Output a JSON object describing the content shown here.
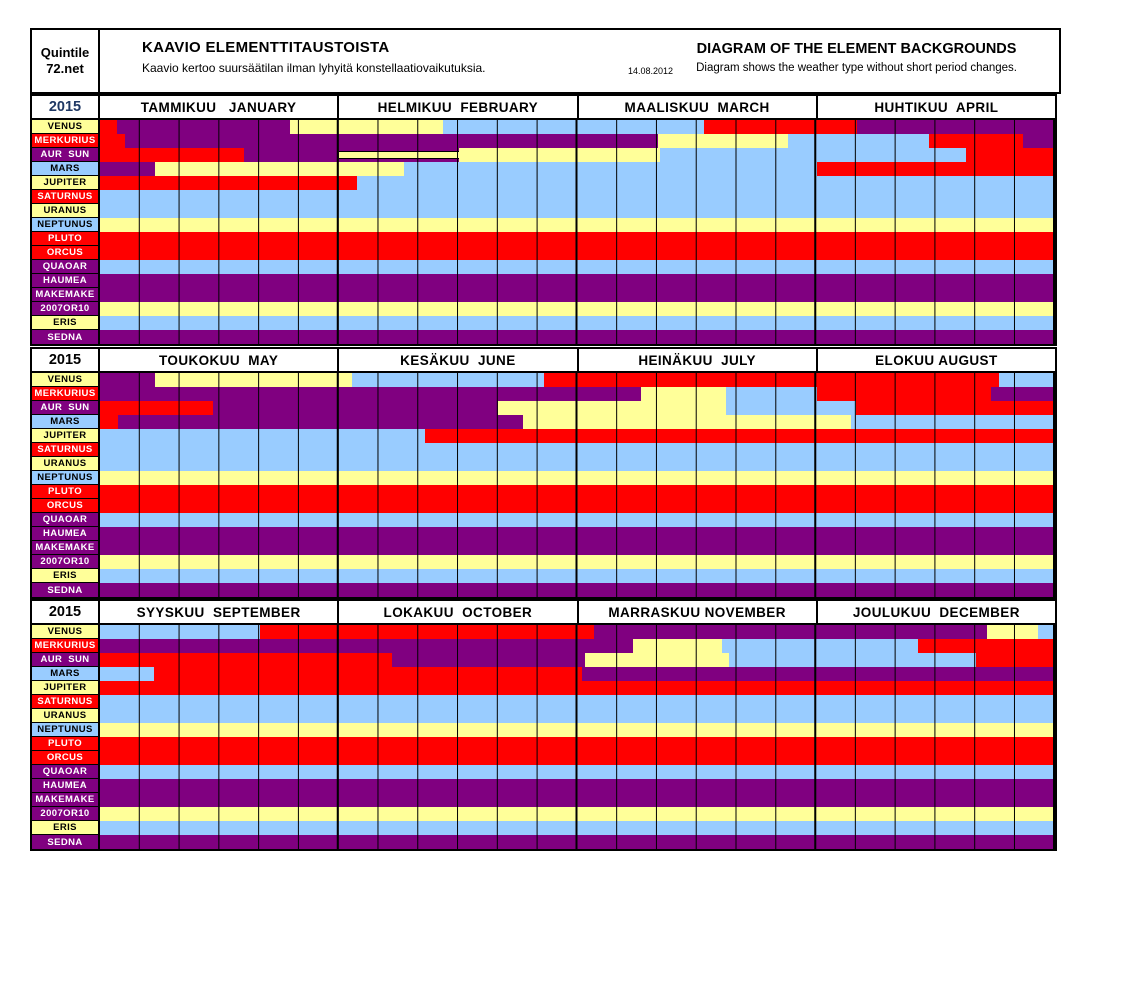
{
  "header": {
    "logo_line1": "Quintile",
    "logo_line2": "72.net",
    "title_fi": "KAAVIO ELEMENTTITAUSTOISTA",
    "subtitle_fi": "Kaavio kertoo suursäätilan ilman lyhyitä konstellaatiovaikutuksia.",
    "date": "14.08.2012",
    "title_en": "DIAGRAM OF THE ELEMENT BACKGROUNDS",
    "subtitle_en": "Diagram shows the weather type without short period changes."
  },
  "chart_data": {
    "type": "heatmap",
    "title": "KAAVIO ELEMENTTITAUSTOISTA / DIAGRAM OF THE ELEMENT BACKGROUNDS",
    "note": "Each block spans 4 months; segment widths are percent of the 4-month axis; grid has 6 sub-columns per month",
    "colors": {
      "R": "#FF0000",
      "P": "#800080",
      "Y": "#FFFF99",
      "B": "#99CCFF"
    },
    "stripe_segment": "S = purple band with black-bordered yellow stripe",
    "planets": [
      {
        "label": "VENUS",
        "bg": "Y",
        "fg": "#000000"
      },
      {
        "label": "MERKURIUS",
        "bg": "R",
        "fg": "#FFFFFF"
      },
      {
        "label": "AUR  SUN",
        "bg": "P",
        "fg": "#FFFFFF"
      },
      {
        "label": "MARS",
        "bg": "B",
        "fg": "#000000"
      },
      {
        "label": "JUPITER",
        "bg": "Y",
        "fg": "#000000"
      },
      {
        "label": "SATURNUS",
        "bg": "R",
        "fg": "#FFFFFF"
      },
      {
        "label": "URANUS",
        "bg": "Y",
        "fg": "#000000"
      },
      {
        "label": "NEPTUNUS",
        "bg": "B",
        "fg": "#000000"
      },
      {
        "label": "PLUTO",
        "bg": "R",
        "fg": "#FFFFFF"
      },
      {
        "label": "ORCUS",
        "bg": "R",
        "fg": "#FFFFFF"
      },
      {
        "label": "QUAOAR",
        "bg": "P",
        "fg": "#FFFFFF"
      },
      {
        "label": "HAUMEA",
        "bg": "P",
        "fg": "#FFFFFF"
      },
      {
        "label": "MAKEMAKE",
        "bg": "P",
        "fg": "#FFFFFF"
      },
      {
        "label": "2007OR10",
        "bg": "P",
        "fg": "#FFFFFF"
      },
      {
        "label": "ERIS",
        "bg": "Y",
        "fg": "#000000"
      },
      {
        "label": "SEDNA",
        "bg": "P",
        "fg": "#FFFFFF"
      }
    ],
    "blocks": [
      {
        "year": "2015",
        "year_color": "#1F3864",
        "months": [
          "TAMMIKUU   JANUARY",
          "HELMIKUU  FEBRUARY",
          "MAALISKUU  MARCH",
          "HUHTIKUU  APRIL"
        ],
        "rows": [
          [
            [
              "R",
              1.8
            ],
            [
              "P",
              18.1
            ],
            [
              "Y",
              16.0
            ],
            [
              "B",
              27.4
            ],
            [
              "R",
              16.0
            ],
            [
              "P",
              20.7
            ]
          ],
          [
            [
              "R",
              2.6
            ],
            [
              "P",
              55.8
            ],
            [
              "Y",
              13.6
            ],
            [
              "B",
              14.8
            ],
            [
              "R",
              9.9
            ],
            [
              "P",
              3.3
            ]
          ],
          [
            [
              "R",
              15.1
            ],
            [
              "P",
              9.9
            ],
            [
              "S",
              12.6
            ],
            [
              "Y",
              21.0
            ],
            [
              "B",
              32.1
            ],
            [
              "R",
              9.3
            ]
          ],
          [
            [
              "P",
              5.8
            ],
            [
              "Y",
              26.0
            ],
            [
              "B",
              43.3
            ],
            [
              "R",
              24.9
            ]
          ],
          [
            [
              "R",
              26.9
            ],
            [
              "B",
              73.1
            ]
          ],
          [
            [
              "B",
              100
            ]
          ],
          [
            [
              "B",
              100
            ]
          ],
          [
            [
              "Y",
              100
            ]
          ],
          [
            [
              "R",
              100
            ]
          ],
          [
            [
              "R",
              100
            ]
          ],
          [
            [
              "B",
              100
            ]
          ],
          [
            [
              "P",
              100
            ]
          ],
          [
            [
              "P",
              100
            ]
          ],
          [
            [
              "Y",
              100
            ]
          ],
          [
            [
              "B",
              100
            ]
          ],
          [
            [
              "P",
              100
            ]
          ]
        ]
      },
      {
        "year": "2015",
        "year_color": "#000000",
        "months": [
          "TOUKOKUU  MAY",
          "KESÄKUU  JUNE",
          "HEINÄKUU  JULY",
          "ELOKUU AUGUST"
        ],
        "rows": [
          [
            [
              "P",
              5.8
            ],
            [
              "Y",
              20.6
            ],
            [
              "B",
              20.1
            ],
            [
              "R",
              47.6
            ],
            [
              "B",
              5.9
            ]
          ],
          [
            [
              "P",
              56.7
            ],
            [
              "Y",
              8.8
            ],
            [
              "B",
              9.6
            ],
            [
              "R",
              18.2
            ],
            [
              "P",
              6.7
            ]
          ],
          [
            [
              "R",
              11.8
            ],
            [
              "P",
              29.9
            ],
            [
              "Y",
              23.9
            ],
            [
              "B",
              13.6
            ],
            [
              "R",
              20.8
            ]
          ],
          [
            [
              "R",
              1.9
            ],
            [
              "P",
              42.4
            ],
            [
              "Y",
              34.3
            ],
            [
              "B",
              21.4
            ]
          ],
          [
            [
              "B",
              34.0
            ],
            [
              "R",
              66.0
            ]
          ],
          [
            [
              "B",
              100
            ]
          ],
          [
            [
              "B",
              100
            ]
          ],
          [
            [
              "Y",
              100
            ]
          ],
          [
            [
              "R",
              100
            ]
          ],
          [
            [
              "R",
              100
            ]
          ],
          [
            [
              "B",
              100
            ]
          ],
          [
            [
              "P",
              100
            ]
          ],
          [
            [
              "P",
              100
            ]
          ],
          [
            [
              "Y",
              100
            ]
          ],
          [
            [
              "B",
              100
            ]
          ],
          [
            [
              "P",
              100
            ]
          ]
        ]
      },
      {
        "year": "2015",
        "year_color": "#000000",
        "months": [
          "SYYSKUU  SEPTEMBER",
          "LOKAKUU  OCTOBER",
          "MARRASKUU NOVEMBER",
          "JOULUKUU  DECEMBER"
        ],
        "rows": [
          [
            [
              "B",
              16.8
            ],
            [
              "R",
              34.9
            ],
            [
              "P",
              41.2
            ],
            [
              "Y",
              5.3
            ],
            [
              "B",
              1.8
            ]
          ],
          [
            [
              "P",
              55.8
            ],
            [
              "Y",
              9.3
            ],
            [
              "B",
              20.6
            ],
            [
              "R",
              14.3
            ]
          ],
          [
            [
              "R",
              30.6
            ],
            [
              "P",
              20.2
            ],
            [
              "Y",
              15.1
            ],
            [
              "B",
              25.8
            ],
            [
              "R",
              8.3
            ]
          ],
          [
            [
              "B",
              5.7
            ],
            [
              "R",
              44.8
            ],
            [
              "P",
              49.5
            ]
          ],
          [
            [
              "R",
              100
            ]
          ],
          [
            [
              "B",
              100
            ]
          ],
          [
            [
              "B",
              100
            ]
          ],
          [
            [
              "Y",
              100
            ]
          ],
          [
            [
              "R",
              100
            ]
          ],
          [
            [
              "R",
              100
            ]
          ],
          [
            [
              "B",
              100
            ]
          ],
          [
            [
              "P",
              100
            ]
          ],
          [
            [
              "P",
              100
            ]
          ],
          [
            [
              "Y",
              100
            ]
          ],
          [
            [
              "B",
              100
            ]
          ],
          [
            [
              "P",
              100
            ]
          ]
        ]
      }
    ]
  }
}
